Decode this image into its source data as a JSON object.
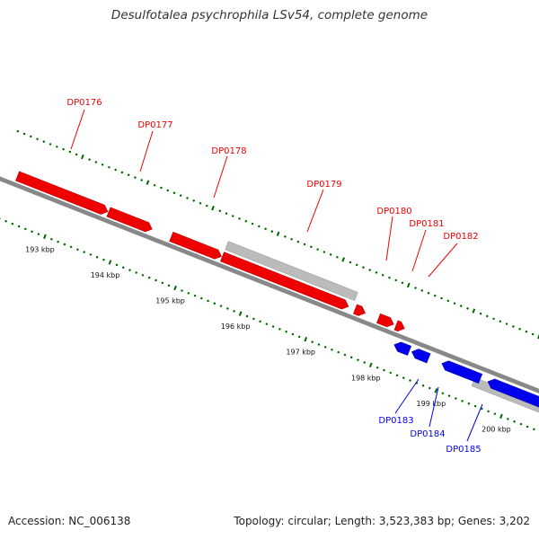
{
  "title": "Desulfotalea psychrophila LSv54, complete genome",
  "footer": {
    "accession": "Accession: NC_006138",
    "stats": "Topology: circular; Length: 3,523,383 bp; Genes: 3,202"
  },
  "colors": {
    "forward": "#ee0000",
    "reverse": "#0000ee",
    "rna": "#bbbbbb",
    "backbone": "#888888",
    "ticks": "#006600"
  },
  "kbp_labels": [
    "193 kbp",
    "194 kbp",
    "195 kbp",
    "196 kbp",
    "197 kbp",
    "198 kbp",
    "199 kbp",
    "200 kbp"
  ],
  "gene_labels": {
    "forward": [
      "DP0176",
      "DP0177",
      "DP0178",
      "DP0179",
      "DP0180",
      "DP0181",
      "DP0182"
    ],
    "reverse": [
      "DP0183",
      "DP0184",
      "DP0185"
    ]
  }
}
